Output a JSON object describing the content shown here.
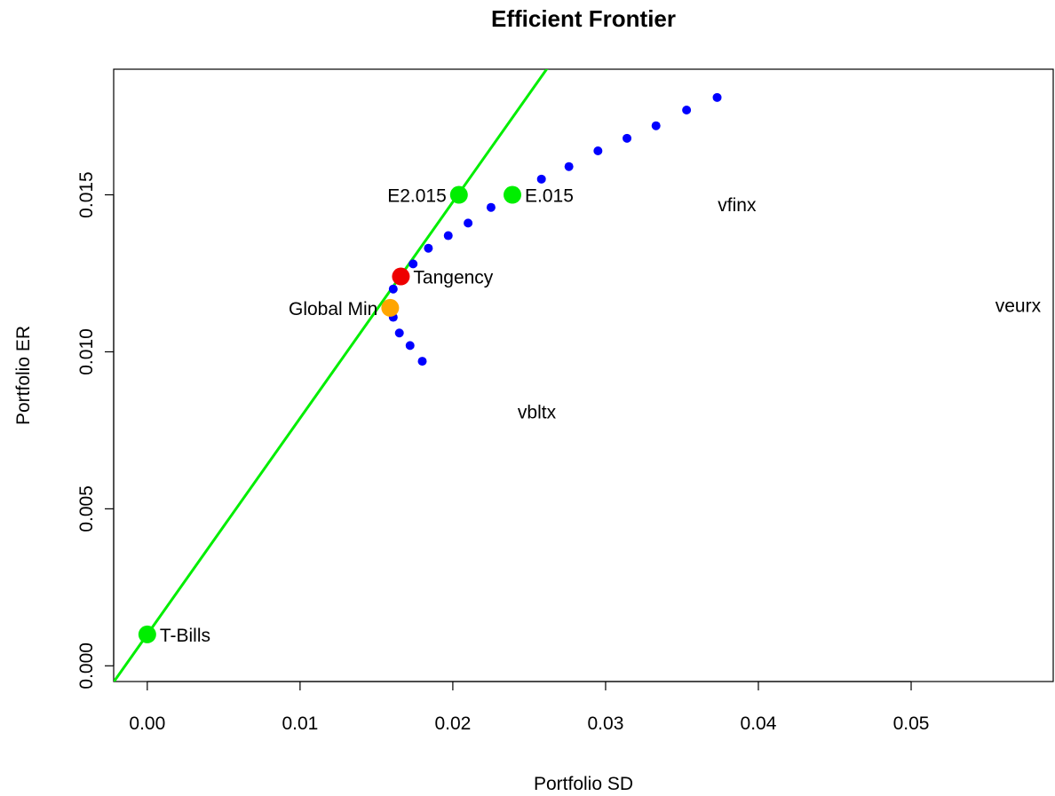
{
  "chart_data": {
    "type": "scatter",
    "title": "Efficient Frontier",
    "xlabel": "Portfolio SD",
    "ylabel": "Portfolio ER",
    "xlim": [
      -0.0022,
      0.0593
    ],
    "ylim": [
      -0.0005,
      0.019
    ],
    "x_ticks": [
      0.0,
      0.01,
      0.02,
      0.03,
      0.04,
      0.05
    ],
    "x_tick_labels": [
      "0.00",
      "0.01",
      "0.02",
      "0.03",
      "0.04",
      "0.05"
    ],
    "y_ticks": [
      0.0,
      0.005,
      0.01,
      0.015
    ],
    "y_tick_labels": [
      "0.000",
      "0.005",
      "0.010",
      "0.015"
    ],
    "grid": false,
    "colors": {
      "frontier": "#0000ff",
      "tangent_line": "#00ee00",
      "tangency": "#ee0000",
      "global_min": "#ffa500",
      "green_points": "#00ee00"
    },
    "frontier_points": [
      {
        "x": 0.018,
        "y": 0.0097
      },
      {
        "x": 0.0172,
        "y": 0.0102
      },
      {
        "x": 0.0165,
        "y": 0.0106
      },
      {
        "x": 0.0161,
        "y": 0.0111
      },
      {
        "x": 0.016,
        "y": 0.0115
      },
      {
        "x": 0.0161,
        "y": 0.012
      },
      {
        "x": 0.0166,
        "y": 0.0124
      },
      {
        "x": 0.0174,
        "y": 0.0128
      },
      {
        "x": 0.0184,
        "y": 0.0133
      },
      {
        "x": 0.0197,
        "y": 0.0137
      },
      {
        "x": 0.021,
        "y": 0.0141
      },
      {
        "x": 0.0225,
        "y": 0.0146
      },
      {
        "x": 0.0241,
        "y": 0.015
      },
      {
        "x": 0.0258,
        "y": 0.0155
      },
      {
        "x": 0.0276,
        "y": 0.0159
      },
      {
        "x": 0.0295,
        "y": 0.0164
      },
      {
        "x": 0.0314,
        "y": 0.0168
      },
      {
        "x": 0.0333,
        "y": 0.0172
      },
      {
        "x": 0.0353,
        "y": 0.0177
      },
      {
        "x": 0.0373,
        "y": 0.0181
      }
    ],
    "tangent_line": {
      "intercept": 0.001,
      "slope": 0.6886
    },
    "special_points": [
      {
        "label": "T-Bills",
        "x": 0.0,
        "y": 0.001,
        "color": "#00ee00",
        "label_side": "right"
      },
      {
        "label": "Tangency",
        "x": 0.0166,
        "y": 0.0124,
        "color": "#ee0000",
        "label_side": "right"
      },
      {
        "label": "Global Min",
        "x": 0.0159,
        "y": 0.0114,
        "color": "#ffa500",
        "label_side": "left"
      },
      {
        "label": "E2.015",
        "x": 0.0204,
        "y": 0.015,
        "color": "#00ee00",
        "label_side": "left"
      },
      {
        "label": "E.015",
        "x": 0.0239,
        "y": 0.015,
        "color": "#00ee00",
        "label_side": "right"
      }
    ],
    "asset_labels": [
      {
        "label": "vfinx",
        "x": 0.0386,
        "y": 0.0147
      },
      {
        "label": "veurx",
        "x": 0.057,
        "y": 0.0115
      },
      {
        "label": "vbltx",
        "x": 0.0255,
        "y": 0.0081
      }
    ]
  }
}
